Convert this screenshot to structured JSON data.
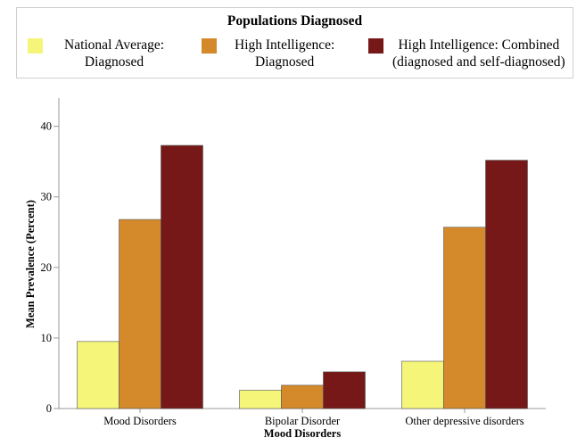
{
  "legend": {
    "title": "Populations Diagnosed",
    "items": [
      {
        "line1": "National Average:",
        "line2": "Diagnosed",
        "color": "#f5f57a"
      },
      {
        "line1": "High Intelligence:",
        "line2": "Diagnosed",
        "color": "#d4892b"
      },
      {
        "line1": "High Intelligence: Combined",
        "line2": "(diagnosed and self-diagnosed)",
        "color": "#761818"
      }
    ]
  },
  "chart_data": {
    "type": "bar",
    "title": "",
    "xlabel": "Mood Disorders",
    "ylabel": "Mean Prevalence (Percent)",
    "ylim": [
      0,
      44
    ],
    "yticks": [
      0,
      10,
      20,
      30,
      40
    ],
    "grid": false,
    "legend_position": "top",
    "categories": [
      "Mood Disorders",
      "Bipolar Disorder",
      "Other depressive disorders"
    ],
    "series": [
      {
        "name": "National Average: Diagnosed",
        "color": "#f5f57a",
        "values": [
          9.5,
          2.6,
          6.7
        ]
      },
      {
        "name": "High Intelligence: Diagnosed",
        "color": "#d4892b",
        "values": [
          26.8,
          3.3,
          25.7
        ]
      },
      {
        "name": "High Intelligence: Combined (diagnosed and self-diagnosed)",
        "color": "#761818",
        "values": [
          37.3,
          5.2,
          35.2
        ]
      }
    ]
  }
}
